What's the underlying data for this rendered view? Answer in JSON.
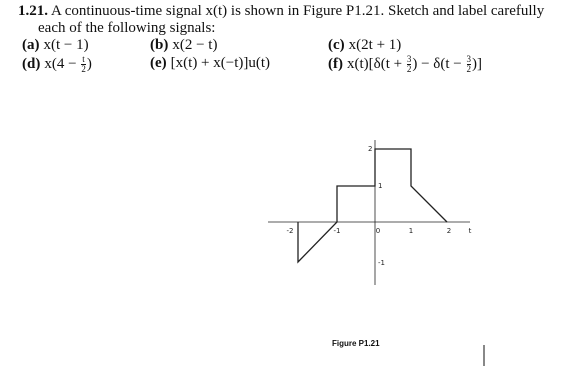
{
  "problem": {
    "number": "1.21.",
    "intro_line1": "A continuous-time signal x(t) is shown in Figure P1.21. Sketch and label carefully",
    "intro_line2": "each of the following signals:",
    "items": [
      {
        "label": "(a)",
        "expr": [
          "x(t − 1)"
        ]
      },
      {
        "label": "(b)",
        "expr": [
          "x(2 − t)"
        ]
      },
      {
        "label": "(c)",
        "expr": [
          "x(2t + 1)"
        ]
      },
      {
        "label": "(d)",
        "expr": [
          "x(4 − ",
          {
            "num": "t",
            "den": "2"
          },
          ")"
        ]
      },
      {
        "label": "(e)",
        "expr": [
          "[x(t) + x(−t)]u(t)"
        ]
      },
      {
        "label": "(f)",
        "expr": [
          "x(t)[δ(t + ",
          {
            "num": "3",
            "den": "2"
          },
          ") − δ(t − ",
          {
            "num": "3",
            "den": "2"
          },
          ")]"
        ]
      }
    ]
  },
  "figure": {
    "caption": "Figure P1.21",
    "x_labels": [
      "-2",
      "-1",
      "0",
      "1",
      "2",
      "t"
    ],
    "y_labels": [
      "2",
      "1",
      "-1"
    ]
  }
}
